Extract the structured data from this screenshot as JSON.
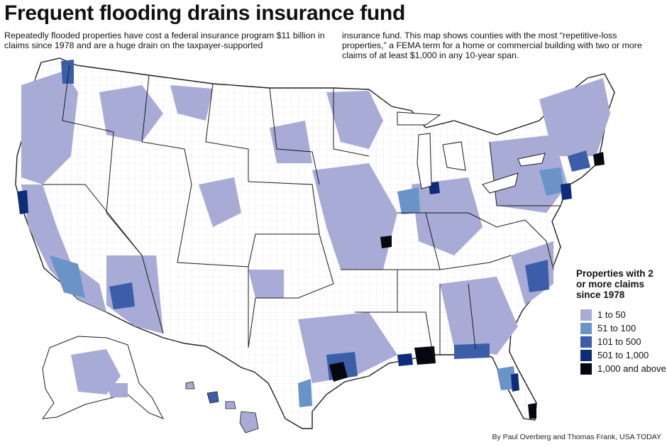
{
  "title": "Frequent flooding drains insurance fund",
  "intro": {
    "left": "Repeatedly flooded properties have cost a federal insurance program $11 billion in claims since 1978 and are a huge drain on the taxpayer-supported",
    "right": "insurance fund. This map shows counties with the most “repetitive-loss properties,” a FEMA term for a home or commercial building with two or more claims of at least $1,000 in any 10-year span."
  },
  "legend": {
    "title": "Properties with 2 or more claims since 1978",
    "items": [
      {
        "label": "1 to 50",
        "color": "#a8abd6"
      },
      {
        "label": "51 to 100",
        "color": "#6a93c8"
      },
      {
        "label": "101 to 500",
        "color": "#3c5ea8"
      },
      {
        "label": "501 to 1,000",
        "color": "#0d2c79"
      },
      {
        "label": "1,000 and above",
        "color": "#05070f"
      }
    ]
  },
  "map": {
    "ocean_color": "#ffffff",
    "state_border_color": "#1a1a1a",
    "county_border_color": "#d9d9ec",
    "no_data_color": "#ffffff"
  },
  "credit": "By Paul Overberg and Thomas Frank, USA TODAY"
}
